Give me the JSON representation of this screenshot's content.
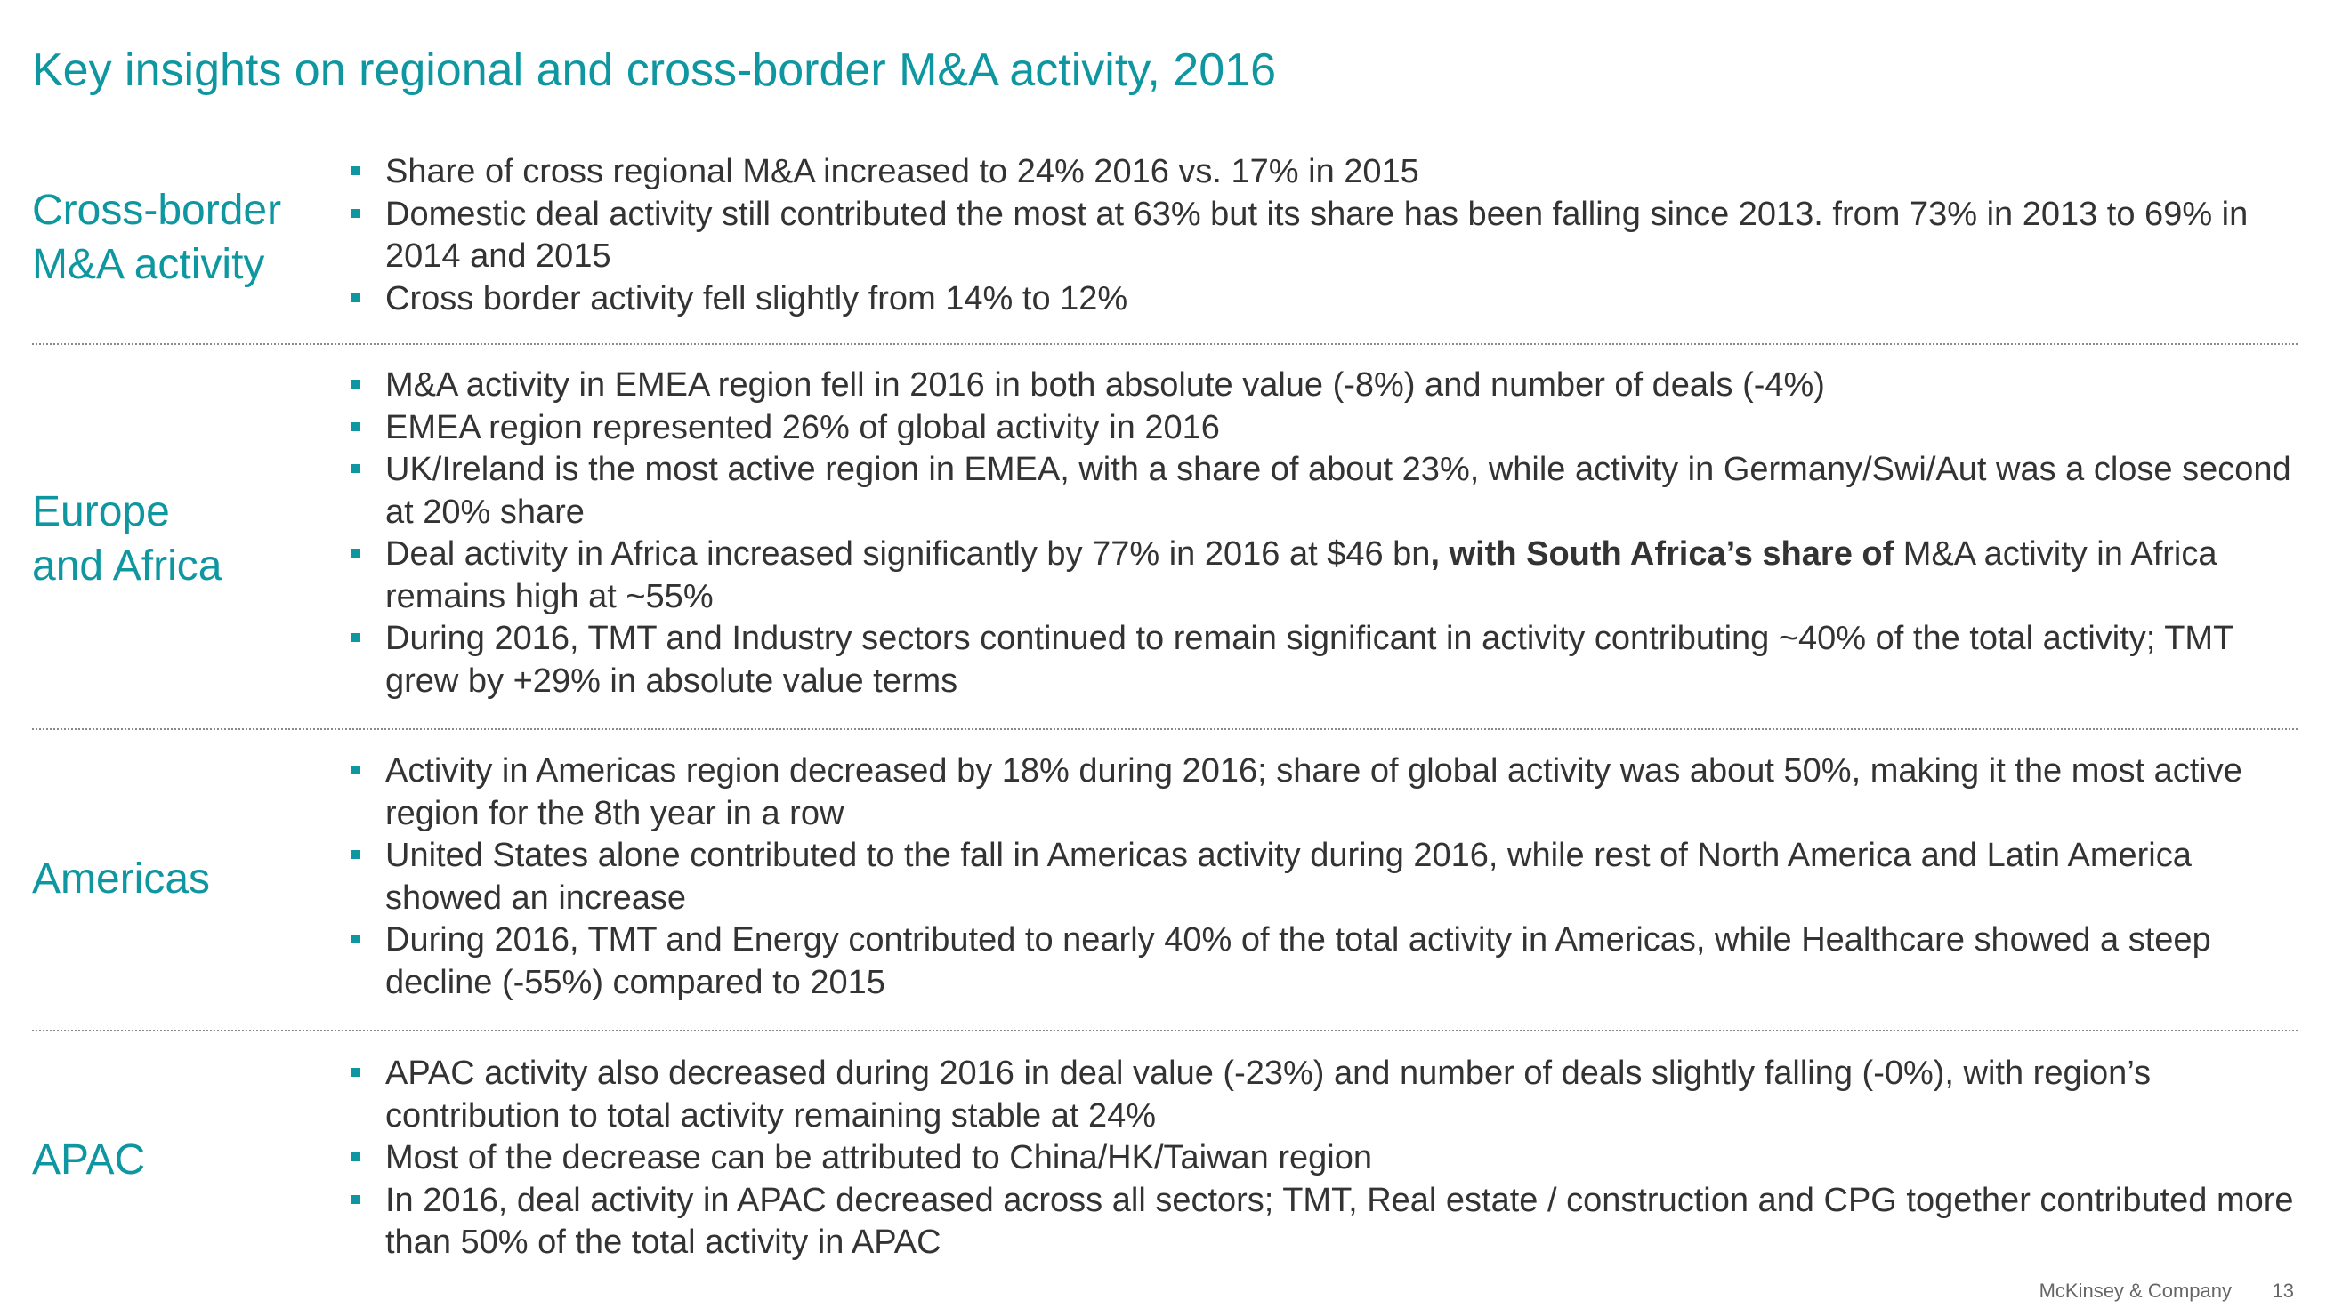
{
  "title": "Key insights on regional and cross-border M&A activity, 2016",
  "sections": [
    {
      "label_lines": [
        "Cross-border",
        "M&A activity"
      ],
      "bullets": [
        "Share of cross regional M&A increased to 24% 2016 vs. 17% in 2015",
        "Domestic deal activity still contributed the most at 63% but its share has been falling since 2013. from 73% in 2013 to 69% in 2014 and 2015",
        "Cross border activity fell slightly from 14% to 12%"
      ]
    },
    {
      "label_lines": [
        "Europe",
        "and Africa"
      ],
      "bullets": [
        "M&A activity in EMEA region fell in 2016 in both absolute value (-8%)  and number of deals (-4%)",
        "EMEA region represented 26% of global activity in 2016",
        "UK/Ireland is the most active region in EMEA, with a share of about 23%, while activity in Germany/Swi/Aut was a close second at 20% share",
        {
          "before": "Deal activity in Africa increased significantly by 77% in 2016 at $46 bn",
          "bold": ", with South Africa’s share of",
          "after": " M&A activity in Africa remains high at ~55%"
        },
        "During 2016, TMT and Industry sectors continued to remain significant in activity contributing ~40% of the total activity; TMT grew by +29% in absolute value terms"
      ]
    },
    {
      "label_lines": [
        "Americas"
      ],
      "bullets": [
        "Activity in Americas region decreased by 18% during 2016; share of global activity was about 50%, making it the most active region for the 8th year in a row",
        "United States alone contributed to the fall in Americas activity during 2016, while rest of North America and Latin America showed an increase",
        "During 2016, TMT and Energy contributed to nearly 40% of the total activity in Americas, while Healthcare showed a steep decline (-55%) compared to 2015"
      ]
    },
    {
      "label_lines": [
        "APAC"
      ],
      "bullets": [
        "APAC activity also decreased during 2016 in deal value (-23%) and number of deals slightly falling (-0%), with region’s contribution to total activity remaining stable at 24%",
        "Most of the decrease can be attributed to China/HK/Taiwan region",
        "In 2016, deal activity in APAC decreased across all sectors; TMT, Real estate / construction  and CPG together contributed more than 50% of the total activity in APAC"
      ]
    }
  ],
  "footer": {
    "company": "McKinsey & Company",
    "page_number": "13"
  },
  "colors": {
    "accent": "#0e97a0",
    "body_text": "#333333",
    "footer_text": "#666666"
  }
}
